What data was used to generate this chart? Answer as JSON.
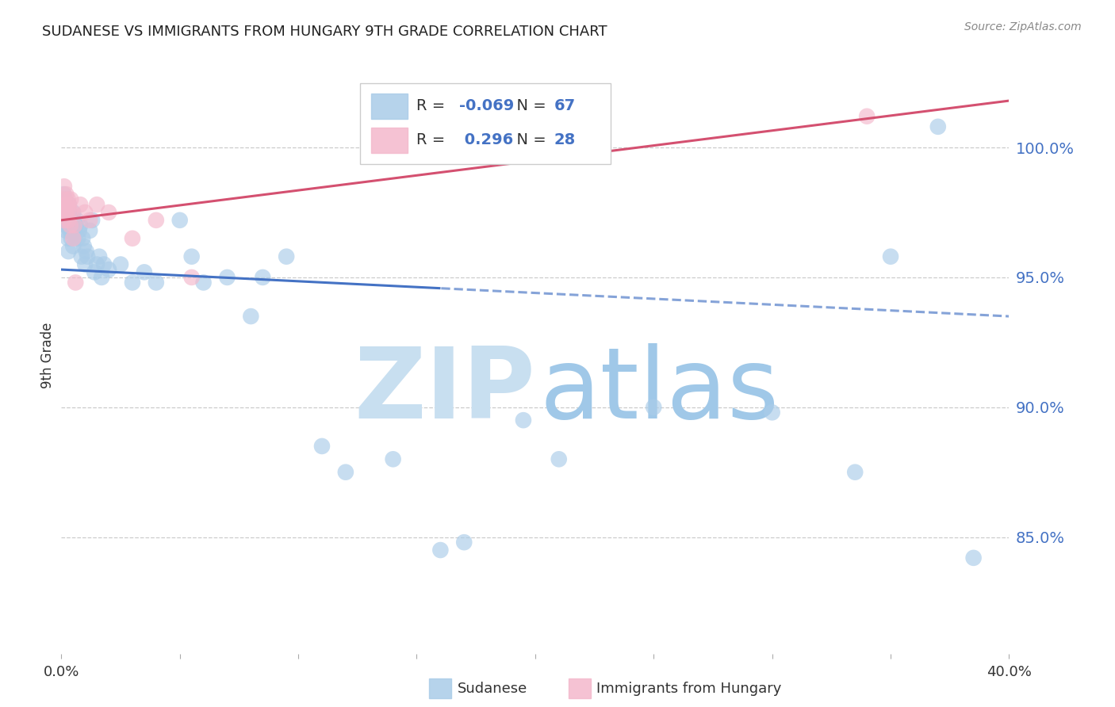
{
  "title": "SUDANESE VS IMMIGRANTS FROM HUNGARY 9TH GRADE CORRELATION CHART",
  "source": "Source: ZipAtlas.com",
  "ylabel": "9th Grade",
  "blue_R": -0.069,
  "blue_N": 67,
  "pink_R": 0.296,
  "pink_N": 28,
  "blue_color": "#aacce8",
  "pink_color": "#f4b8cc",
  "line_blue": "#4472c4",
  "line_pink": "#d45070",
  "watermark_zip_color": "#c8dff0",
  "watermark_atlas_color": "#a0c8e8",
  "background_color": "#ffffff",
  "grid_color": "#cccccc",
  "right_tick_color": "#4472c4",
  "legend_R_color": "#4472c4",
  "yticks": [
    85.0,
    90.0,
    95.0,
    100.0
  ],
  "x_min": 0.0,
  "x_max": 40.0,
  "y_min": 80.5,
  "y_max": 103.5,
  "blue_trend_slope": -0.045,
  "blue_trend_intercept": 95.3,
  "blue_solid_end": 16.0,
  "pink_trend_slope": 0.115,
  "pink_trend_intercept": 97.2,
  "blue_x": [
    0.05,
    0.08,
    0.1,
    0.12,
    0.15,
    0.15,
    0.18,
    0.2,
    0.2,
    0.22,
    0.25,
    0.28,
    0.3,
    0.3,
    0.32,
    0.35,
    0.38,
    0.4,
    0.42,
    0.45,
    0.48,
    0.5,
    0.5,
    0.55,
    0.6,
    0.65,
    0.7,
    0.75,
    0.8,
    0.85,
    0.9,
    0.95,
    1.0,
    1.05,
    1.1,
    1.2,
    1.3,
    1.4,
    1.5,
    1.6,
    1.7,
    1.8,
    2.0,
    2.5,
    3.0,
    3.5,
    4.0,
    5.0,
    5.5,
    6.0,
    7.0,
    8.0,
    8.5,
    9.5,
    11.0,
    12.0,
    14.0,
    16.0,
    17.0,
    19.5,
    21.0,
    25.0,
    30.0,
    33.5,
    35.0,
    37.0,
    38.5
  ],
  "blue_y": [
    97.8,
    97.2,
    98.2,
    97.5,
    98.0,
    97.0,
    97.3,
    97.8,
    96.8,
    97.0,
    97.5,
    96.5,
    97.2,
    96.0,
    97.8,
    97.5,
    96.8,
    97.0,
    96.5,
    97.2,
    96.8,
    97.5,
    96.2,
    96.8,
    97.0,
    97.2,
    96.5,
    96.8,
    97.0,
    95.8,
    96.5,
    96.2,
    95.5,
    96.0,
    95.8,
    96.8,
    97.2,
    95.2,
    95.5,
    95.8,
    95.0,
    95.5,
    95.3,
    95.5,
    94.8,
    95.2,
    94.8,
    97.2,
    95.8,
    94.8,
    95.0,
    93.5,
    95.0,
    95.8,
    88.5,
    87.5,
    88.0,
    84.5,
    84.8,
    89.5,
    88.0,
    90.0,
    89.8,
    87.5,
    95.8,
    100.8,
    84.2
  ],
  "pink_x": [
    0.05,
    0.08,
    0.1,
    0.12,
    0.15,
    0.18,
    0.2,
    0.22,
    0.25,
    0.28,
    0.3,
    0.32,
    0.35,
    0.38,
    0.4,
    0.45,
    0.5,
    0.55,
    0.6,
    0.8,
    1.0,
    1.2,
    1.5,
    2.0,
    3.0,
    4.0,
    5.5,
    34.0
  ],
  "pink_y": [
    97.5,
    98.0,
    97.2,
    98.5,
    97.8,
    97.5,
    98.2,
    97.8,
    97.5,
    98.0,
    97.2,
    97.8,
    97.5,
    97.0,
    98.0,
    97.5,
    96.5,
    97.0,
    94.8,
    97.8,
    97.5,
    97.2,
    97.8,
    97.5,
    96.5,
    97.2,
    95.0,
    101.2
  ]
}
